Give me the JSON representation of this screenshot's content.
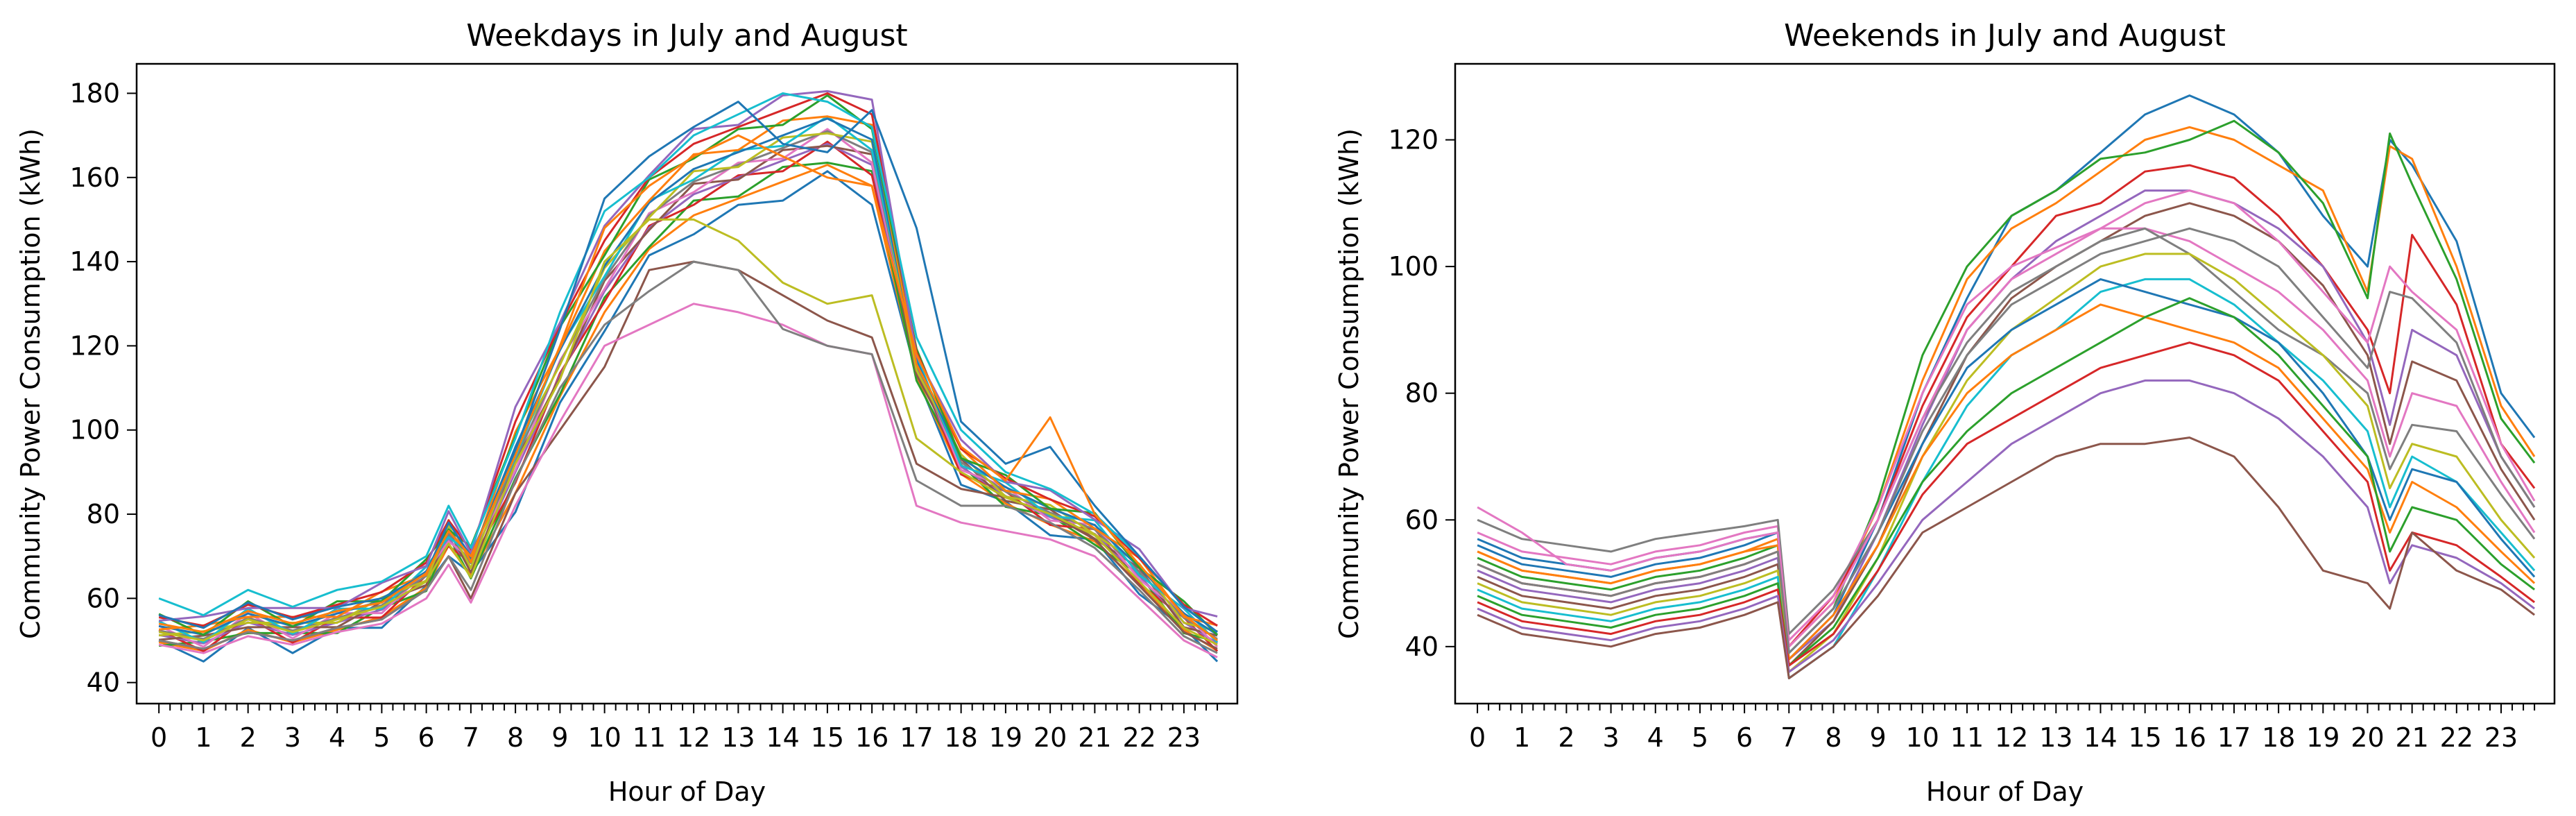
{
  "chart_data": [
    {
      "type": "line",
      "title": "Weekdays in July and August",
      "xlabel": "Hour of Day",
      "ylabel": "Community Power Consumption (kWh)",
      "xlim": [
        -0.5,
        24.2
      ],
      "ylim": [
        35,
        187
      ],
      "xticks": [
        0,
        1,
        2,
        3,
        4,
        5,
        6,
        7,
        8,
        9,
        10,
        11,
        12,
        13,
        14,
        15,
        16,
        17,
        18,
        19,
        20,
        21,
        22,
        23
      ],
      "yticks": [
        40,
        60,
        80,
        100,
        120,
        140,
        160,
        180
      ],
      "minor_ticks_per_hour": 4,
      "grid": false,
      "legend": "none",
      "x": [
        0,
        1,
        2,
        3,
        4,
        5,
        6,
        6.5,
        7,
        8,
        9,
        10,
        11,
        12,
        13,
        14,
        15,
        16,
        17,
        18,
        19,
        20,
        21,
        22,
        23,
        23.75
      ],
      "family_profile": [
        52,
        50,
        55,
        52,
        55,
        58,
        65,
        75,
        68,
        92,
        115,
        135,
        150,
        158,
        162,
        166,
        170,
        165,
        115,
        92,
        85,
        80,
        76,
        66,
        55,
        50
      ],
      "highlighted_series": [
        {
          "values": [
            50,
            48,
            52,
            50,
            53,
            55,
            62,
            70,
            60,
            85,
            100,
            115,
            138,
            140,
            138,
            132,
            126,
            122,
            92,
            86,
            84,
            80,
            74,
            63,
            52,
            48
          ]
        },
        {
          "values": [
            49,
            47,
            51,
            49,
            52,
            54,
            60,
            68,
            59,
            82,
            102,
            120,
            125,
            130,
            128,
            125,
            120,
            118,
            82,
            78,
            76,
            74,
            70,
            60,
            50,
            46
          ]
        },
        {
          "values": [
            50,
            48,
            52,
            50,
            53,
            55,
            62,
            70,
            62,
            88,
            110,
            125,
            133,
            140,
            138,
            124,
            120,
            118,
            88,
            82,
            82,
            78,
            72,
            62,
            51,
            47
          ]
        },
        {
          "values": [
            52,
            50,
            55,
            52,
            55,
            58,
            64,
            73,
            65,
            92,
            112,
            140,
            150,
            150,
            145,
            135,
            130,
            132,
            98,
            90,
            84,
            80,
            75,
            64,
            53,
            49
          ]
        },
        {
          "values": [
            60,
            56,
            62,
            58,
            62,
            64,
            70,
            82,
            72,
            98,
            128,
            152,
            160,
            170,
            175,
            180,
            178,
            172,
            122,
            100,
            90,
            86,
            80,
            70,
            58,
            52
          ]
        },
        {
          "values": [
            56,
            53,
            59,
            55,
            58,
            60,
            66,
            78,
            70,
            95,
            124,
            155,
            165,
            172,
            178,
            168,
            166,
            176,
            148,
            102,
            92,
            96,
            82,
            70,
            58,
            52
          ]
        },
        {
          "values": [
            54,
            52,
            57,
            54,
            57,
            59,
            66,
            76,
            70,
            94,
            120,
            148,
            158,
            165,
            170,
            165,
            160,
            158,
            118,
            96,
            88,
            103,
            80,
            68,
            56,
            50
          ]
        }
      ],
      "family_spread": [
        -10,
        -7,
        -5,
        -3,
        -2,
        -1,
        0,
        1,
        2,
        3,
        4,
        6,
        8,
        10,
        12
      ]
    },
    {
      "type": "line",
      "title": "Weekends in July and August",
      "xlabel": "Hour of Day",
      "ylabel": "Community Power Consumption (kWh)",
      "xlim": [
        -0.5,
        24.2
      ],
      "ylim": [
        31,
        132
      ],
      "xticks": [
        0,
        1,
        2,
        3,
        4,
        5,
        6,
        7,
        8,
        9,
        10,
        11,
        12,
        13,
        14,
        15,
        16,
        17,
        18,
        19,
        20,
        21,
        22,
        23
      ],
      "yticks": [
        40,
        60,
        80,
        100,
        120
      ],
      "minor_ticks_per_hour": 4,
      "grid": false,
      "legend": "none",
      "x": [
        0,
        1,
        2,
        3,
        4,
        5,
        6,
        6.75,
        7,
        8,
        9,
        10,
        11,
        12,
        13,
        14,
        15,
        16,
        17,
        18,
        19,
        20,
        20.5,
        21,
        22,
        23,
        23.75
      ],
      "series": [
        {
          "values": [
            56,
            53,
            52,
            51,
            53,
            54,
            56,
            58,
            38,
            45,
            60,
            80,
            95,
            108,
            112,
            118,
            124,
            127,
            124,
            118,
            108,
            100,
            120,
            116,
            104,
            80,
            73
          ]
        },
        {
          "values": [
            55,
            52,
            51,
            50,
            52,
            53,
            55,
            57,
            40,
            47,
            62,
            82,
            98,
            106,
            110,
            115,
            120,
            122,
            120,
            116,
            112,
            96,
            119,
            117,
            100,
            78,
            70
          ]
        },
        {
          "values": [
            54,
            51,
            50,
            49,
            51,
            52,
            54,
            56,
            39,
            46,
            63,
            86,
            100,
            108,
            112,
            117,
            118,
            120,
            123,
            118,
            110,
            95,
            121,
            113,
            98,
            76,
            69
          ]
        },
        {
          "values": [
            53,
            50,
            49,
            48,
            50,
            51,
            53,
            55,
            40,
            48,
            60,
            78,
            92,
            100,
            108,
            110,
            115,
            116,
            114,
            108,
            100,
            90,
            80,
            105,
            94,
            72,
            65
          ]
        },
        {
          "values": [
            52,
            49,
            48,
            47,
            49,
            50,
            52,
            54,
            38,
            44,
            58,
            75,
            90,
            98,
            104,
            108,
            112,
            112,
            110,
            106,
            100,
            88,
            75,
            90,
            86,
            70,
            62
          ]
        },
        {
          "values": [
            51,
            48,
            47,
            46,
            48,
            49,
            51,
            53,
            37,
            44,
            56,
            72,
            86,
            95,
            100,
            104,
            108,
            110,
            108,
            104,
            97,
            86,
            72,
            85,
            82,
            68,
            60
          ]
        },
        {
          "values": [
            58,
            55,
            54,
            53,
            55,
            56,
            58,
            59,
            41,
            48,
            62,
            80,
            94,
            100,
            103,
            106,
            106,
            104,
            100,
            96,
            90,
            82,
            70,
            80,
            78,
            66,
            58
          ]
        },
        {
          "values": [
            60,
            57,
            56,
            55,
            57,
            58,
            59,
            60,
            42,
            49,
            60,
            76,
            88,
            96,
            100,
            104,
            106,
            102,
            96,
            90,
            86,
            80,
            68,
            75,
            74,
            64,
            57
          ]
        },
        {
          "values": [
            50,
            47,
            46,
            45,
            47,
            48,
            50,
            52,
            36,
            42,
            54,
            70,
            82,
            90,
            95,
            100,
            102,
            102,
            98,
            92,
            86,
            78,
            65,
            72,
            70,
            60,
            54
          ]
        },
        {
          "values": [
            49,
            46,
            45,
            44,
            46,
            47,
            49,
            51,
            35,
            40,
            52,
            66,
            78,
            86,
            90,
            96,
            98,
            98,
            94,
            88,
            82,
            74,
            62,
            70,
            66,
            58,
            52
          ]
        },
        {
          "values": [
            57,
            54,
            53,
            52,
            54,
            55,
            57,
            58,
            39,
            46,
            58,
            72,
            84,
            90,
            94,
            98,
            96,
            94,
            92,
            88,
            80,
            70,
            60,
            68,
            66,
            57,
            51
          ]
        },
        {
          "values": [
            55,
            52,
            51,
            50,
            52,
            53,
            55,
            56,
            38,
            45,
            56,
            70,
            80,
            86,
            90,
            94,
            92,
            90,
            88,
            84,
            76,
            68,
            58,
            66,
            62,
            55,
            50
          ]
        },
        {
          "values": [
            48,
            45,
            44,
            43,
            45,
            46,
            48,
            50,
            37,
            43,
            54,
            66,
            74,
            80,
            84,
            88,
            92,
            95,
            92,
            86,
            78,
            70,
            55,
            62,
            60,
            53,
            49
          ]
        },
        {
          "values": [
            47,
            44,
            43,
            42,
            44,
            45,
            47,
            49,
            37,
            42,
            52,
            64,
            72,
            76,
            80,
            84,
            86,
            88,
            86,
            82,
            74,
            66,
            52,
            58,
            56,
            51,
            47
          ]
        },
        {
          "values": [
            46,
            43,
            42,
            41,
            43,
            44,
            46,
            48,
            36,
            41,
            50,
            60,
            66,
            72,
            76,
            80,
            82,
            82,
            80,
            76,
            70,
            62,
            50,
            56,
            54,
            50,
            46
          ]
        },
        {
          "values": [
            45,
            42,
            41,
            40,
            42,
            43,
            45,
            47,
            35,
            40,
            48,
            58,
            62,
            66,
            70,
            72,
            72,
            73,
            70,
            62,
            52,
            50,
            46,
            58,
            52,
            49,
            45
          ]
        },
        {
          "values": [
            62,
            58,
            53,
            52,
            54,
            55,
            57,
            58,
            40,
            47,
            60,
            76,
            90,
            98,
            102,
            106,
            110,
            112,
            110,
            104,
            96,
            88,
            100,
            96,
            90,
            72,
            63
          ]
        },
        {
          "values": [
            53,
            50,
            49,
            48,
            50,
            51,
            53,
            55,
            39,
            46,
            58,
            74,
            86,
            94,
            98,
            102,
            104,
            106,
            104,
            100,
            92,
            84,
            96,
            95,
            88,
            70,
            62
          ]
        }
      ]
    }
  ]
}
